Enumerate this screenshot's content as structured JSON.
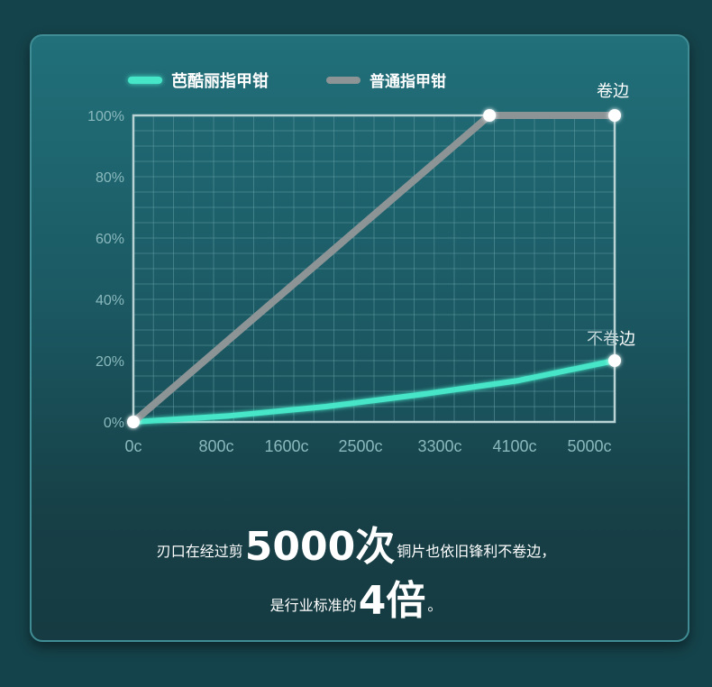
{
  "colors": {
    "teal": "#46e6c8",
    "gray": "#8c9496",
    "grid": "#6fa9ae",
    "axis_text": "#8ab9bd"
  },
  "chart_data": {
    "type": "line",
    "legend_position": "top-left",
    "grid": true,
    "xlim": [
      0,
      5000
    ],
    "ylim": [
      0,
      100
    ],
    "x_tick_labels": [
      "0c",
      "800c",
      "1600c",
      "2500c",
      "3300c",
      "4100c",
      "5000c"
    ],
    "y_tick_labels": [
      "100%",
      "80%",
      "60%",
      "40%",
      "20%",
      "0%"
    ],
    "series": [
      {
        "name": "芭酷丽指甲钳",
        "color": "#46e6c8",
        "x": [
          0,
          1000,
          2000,
          3000,
          4000,
          5000
        ],
        "y": [
          0,
          2,
          5,
          9,
          13.5,
          20
        ]
      },
      {
        "name": "普通指甲钳",
        "color": "#8c9496",
        "x": [
          0,
          3700,
          5000
        ],
        "y": [
          0,
          100,
          100
        ]
      }
    ],
    "annotations": [
      "卷边",
      "不卷边"
    ]
  },
  "caption": {
    "line1_pre": "刃口在经过剪",
    "line1_big": "5000次",
    "line1_post": "铜片也依旧锋利不卷边，",
    "line2_pre": "是行业标准的",
    "line2_big": "4倍",
    "line2_post": "。"
  }
}
